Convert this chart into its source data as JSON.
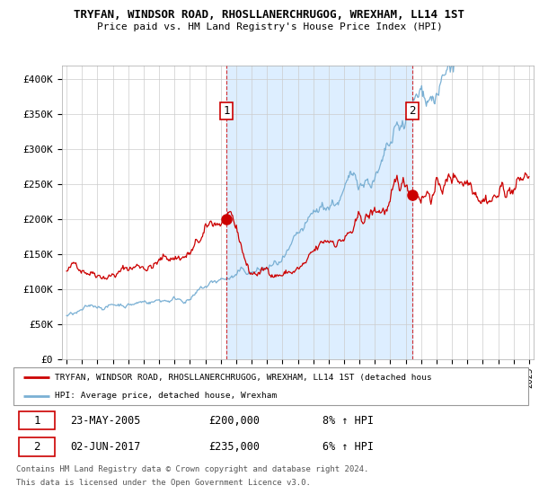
{
  "title": "TRYFAN, WINDSOR ROAD, RHOSLLANERCHRUGOG, WREXHAM, LL14 1ST",
  "subtitle": "Price paid vs. HM Land Registry's House Price Index (HPI)",
  "ylim": [
    0,
    420000
  ],
  "yticks": [
    0,
    50000,
    100000,
    150000,
    200000,
    250000,
    300000,
    350000,
    400000
  ],
  "ytick_labels": [
    "£0",
    "£50K",
    "£100K",
    "£150K",
    "£200K",
    "£250K",
    "£300K",
    "£350K",
    "£400K"
  ],
  "red_line_color": "#cc0000",
  "blue_line_color": "#7ab0d4",
  "shade_color": "#ddeeff",
  "vline_color": "#cc0000",
  "grid_color": "#cccccc",
  "sale1_year": 2005.38,
  "sale1_price": 200000,
  "sale1_date": "23-MAY-2005",
  "sale1_pct": "8% ↑ HPI",
  "sale2_year": 2017.42,
  "sale2_price": 235000,
  "sale2_date": "02-JUN-2017",
  "sale2_pct": "6% ↑ HPI",
  "legend_red_label": "TRYFAN, WINDSOR ROAD, RHOSLLANERCHRUGOG, WREXHAM, LL14 1ST (detached hous",
  "legend_blue_label": "HPI: Average price, detached house, Wrexham",
  "footer1": "Contains HM Land Registry data © Crown copyright and database right 2024.",
  "footer2": "This data is licensed under the Open Government Licence v3.0."
}
